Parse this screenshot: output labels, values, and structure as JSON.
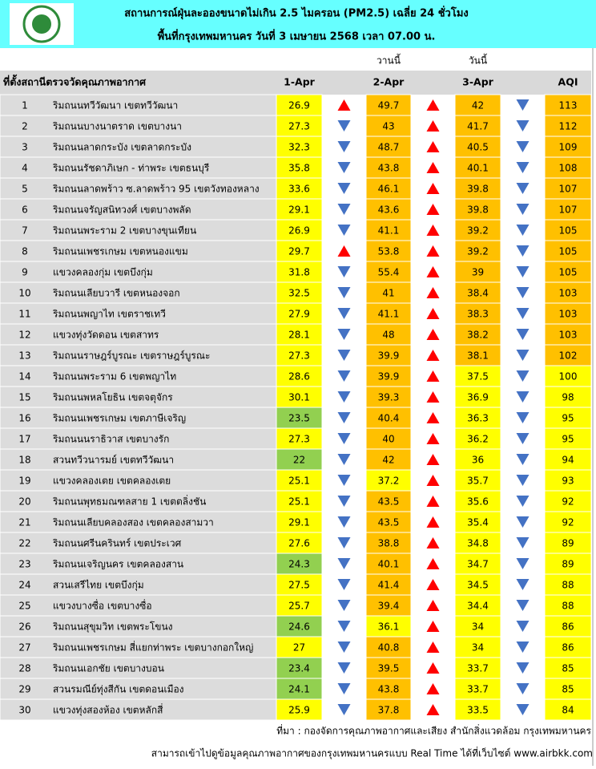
{
  "header": {
    "title": "สถานการณ์ฝุ่นละอองขนาดไม่เกิน 2.5 ไมครอน (PM2.5) เฉลี่ย 24 ชั่วโมง",
    "subtitle": "พื้นที่กรุงเทพมหานคร วันที่ 3 เมษายน 2568 เวลา 07.00 น."
  },
  "table": {
    "day_labels": [
      "วานนี้",
      "วันนี้"
    ],
    "columns": [
      "ที่ตั้งสถานีตรวจวัดคุณภาพอากาศ",
      "1-Apr",
      "2-Apr",
      "3-Apr",
      "AQI"
    ],
    "colors": {
      "good": "#92d050",
      "moderate": "#ffff00",
      "high": "#ffc000",
      "up": "#ff0000",
      "down": "#4472c4"
    },
    "rows": [
      {
        "no": 1,
        "station": "ริมถนนทวีวัฒนา เขตทวีวัฒนา",
        "pm": [
          26.9,
          49.7,
          42
        ],
        "aqi": 113,
        "levels": [
          "moderate",
          "high",
          "high",
          "high"
        ],
        "arrows": [
          "up",
          "up",
          "down"
        ]
      },
      {
        "no": 2,
        "station": "ริมถนนบางนาตราด เขตบางนา",
        "pm": [
          27.3,
          43,
          41.7
        ],
        "aqi": 112,
        "levels": [
          "moderate",
          "high",
          "high",
          "high"
        ],
        "arrows": [
          "down",
          "up",
          "down"
        ]
      },
      {
        "no": 3,
        "station": "ริมถนนลาดกระบัง เขตลาดกระบัง",
        "pm": [
          32.3,
          48.7,
          40.5
        ],
        "aqi": 109,
        "levels": [
          "moderate",
          "high",
          "high",
          "high"
        ],
        "arrows": [
          "down",
          "up",
          "down"
        ]
      },
      {
        "no": 4,
        "station": "ริมถนนรัชดาภิเษก - ท่าพระ เขตธนบุรี",
        "pm": [
          35.8,
          43.8,
          40.1
        ],
        "aqi": 108,
        "levels": [
          "moderate",
          "high",
          "high",
          "high"
        ],
        "arrows": [
          "down",
          "up",
          "down"
        ]
      },
      {
        "no": 5,
        "station": "ริมถนนลาดพร้าว ซ.ลาดพร้าว 95 เขตวังทองหลาง",
        "pm": [
          33.6,
          46.1,
          39.8
        ],
        "aqi": 107,
        "levels": [
          "moderate",
          "high",
          "high",
          "high"
        ],
        "arrows": [
          "down",
          "up",
          "down"
        ]
      },
      {
        "no": 6,
        "station": "ริมถนนจรัญสนิทวงศ์ เขตบางพลัด",
        "pm": [
          29.1,
          43.6,
          39.8
        ],
        "aqi": 107,
        "levels": [
          "moderate",
          "high",
          "high",
          "high"
        ],
        "arrows": [
          "down",
          "up",
          "down"
        ]
      },
      {
        "no": 7,
        "station": "ริมถนนพระราม 2 เขตบางขุนเทียน",
        "pm": [
          26.9,
          41.1,
          39.2
        ],
        "aqi": 105,
        "levels": [
          "moderate",
          "high",
          "high",
          "high"
        ],
        "arrows": [
          "down",
          "up",
          "down"
        ]
      },
      {
        "no": 8,
        "station": "ริมถนนเพชรเกษม เขตหนองแขม",
        "pm": [
          29.7,
          53.8,
          39.2
        ],
        "aqi": 105,
        "levels": [
          "moderate",
          "high",
          "high",
          "high"
        ],
        "arrows": [
          "up",
          "up",
          "down"
        ]
      },
      {
        "no": 9,
        "station": "แขวงคลองกุ่ม เขตบึงกุ่ม",
        "pm": [
          31.8,
          55.4,
          39
        ],
        "aqi": 105,
        "levels": [
          "moderate",
          "high",
          "high",
          "high"
        ],
        "arrows": [
          "down",
          "up",
          "down"
        ]
      },
      {
        "no": 10,
        "station": "ริมถนนเลียบวารี เขตหนองจอก",
        "pm": [
          32.5,
          41,
          38.4
        ],
        "aqi": 103,
        "levels": [
          "moderate",
          "high",
          "high",
          "high"
        ],
        "arrows": [
          "down",
          "up",
          "down"
        ]
      },
      {
        "no": 11,
        "station": "ริมถนนพญาไท เขตราชเทวี",
        "pm": [
          27.9,
          41.1,
          38.3
        ],
        "aqi": 103,
        "levels": [
          "moderate",
          "high",
          "high",
          "high"
        ],
        "arrows": [
          "down",
          "up",
          "down"
        ]
      },
      {
        "no": 12,
        "station": "แขวงทุ่งวัดดอน เขตสาทร",
        "pm": [
          28.1,
          48,
          38.2
        ],
        "aqi": 103,
        "levels": [
          "moderate",
          "high",
          "high",
          "high"
        ],
        "arrows": [
          "down",
          "up",
          "down"
        ]
      },
      {
        "no": 13,
        "station": "ริมถนนราษฎร์บูรณะ เขตราษฎร์บูรณะ",
        "pm": [
          27.3,
          39.9,
          38.1
        ],
        "aqi": 102,
        "levels": [
          "moderate",
          "high",
          "high",
          "high"
        ],
        "arrows": [
          "down",
          "up",
          "down"
        ]
      },
      {
        "no": 14,
        "station": "ริมถนนพระราม 6 เขตพญาไท",
        "pm": [
          28.6,
          39.9,
          37.5
        ],
        "aqi": 100,
        "levels": [
          "moderate",
          "high",
          "moderate",
          "moderate"
        ],
        "arrows": [
          "down",
          "up",
          "down"
        ]
      },
      {
        "no": 15,
        "station": "ริมถนนพหลโยธิน เขตจตุจักร",
        "pm": [
          30.1,
          39.3,
          36.9
        ],
        "aqi": 98,
        "levels": [
          "moderate",
          "high",
          "moderate",
          "moderate"
        ],
        "arrows": [
          "down",
          "up",
          "down"
        ]
      },
      {
        "no": 16,
        "station": "ริมถนนเพชรเกษม เขตภาษีเจริญ",
        "pm": [
          23.5,
          40.4,
          36.3
        ],
        "aqi": 95,
        "levels": [
          "good",
          "high",
          "moderate",
          "moderate"
        ],
        "arrows": [
          "down",
          "up",
          "down"
        ]
      },
      {
        "no": 17,
        "station": "ริมถนนนราธิวาส เขตบางรัก",
        "pm": [
          27.3,
          40,
          36.2
        ],
        "aqi": 95,
        "levels": [
          "moderate",
          "high",
          "moderate",
          "moderate"
        ],
        "arrows": [
          "down",
          "up",
          "down"
        ]
      },
      {
        "no": 18,
        "station": "สวนทวีวนารมย์ เขตทวีวัฒนา",
        "pm": [
          22,
          42,
          36
        ],
        "aqi": 94,
        "levels": [
          "good",
          "high",
          "moderate",
          "moderate"
        ],
        "arrows": [
          "down",
          "up",
          "down"
        ]
      },
      {
        "no": 19,
        "station": "แขวงคลองเตย เขตคลองเตย",
        "pm": [
          25.1,
          37.2,
          35.7
        ],
        "aqi": 93,
        "levels": [
          "moderate",
          "moderate",
          "moderate",
          "moderate"
        ],
        "arrows": [
          "down",
          "up",
          "down"
        ]
      },
      {
        "no": 20,
        "station": "ริมถนนพุทธมณฑลสาย 1 เขตตลิ่งชัน",
        "pm": [
          25.1,
          43.5,
          35.6
        ],
        "aqi": 92,
        "levels": [
          "moderate",
          "high",
          "moderate",
          "moderate"
        ],
        "arrows": [
          "down",
          "up",
          "down"
        ]
      },
      {
        "no": 21,
        "station": "ริมถนนเลียบคลองสอง เขตคลองสามวา",
        "pm": [
          29.1,
          43.5,
          35.4
        ],
        "aqi": 92,
        "levels": [
          "moderate",
          "high",
          "moderate",
          "moderate"
        ],
        "arrows": [
          "down",
          "up",
          "down"
        ]
      },
      {
        "no": 22,
        "station": "ริมถนนศรีนครินทร์ เขตประเวศ",
        "pm": [
          27.6,
          38.8,
          34.8
        ],
        "aqi": 89,
        "levels": [
          "moderate",
          "high",
          "moderate",
          "moderate"
        ],
        "arrows": [
          "down",
          "up",
          "down"
        ]
      },
      {
        "no": 23,
        "station": "ริมถนนเจริญนคร เขตคลองสาน",
        "pm": [
          24.3,
          40.1,
          34.7
        ],
        "aqi": 89,
        "levels": [
          "good",
          "high",
          "moderate",
          "moderate"
        ],
        "arrows": [
          "down",
          "up",
          "down"
        ]
      },
      {
        "no": 24,
        "station": "สวนเสรีไทย  เขตบึงกุ่ม",
        "pm": [
          27.5,
          41.4,
          34.5
        ],
        "aqi": 88,
        "levels": [
          "moderate",
          "high",
          "moderate",
          "moderate"
        ],
        "arrows": [
          "down",
          "up",
          "down"
        ]
      },
      {
        "no": 25,
        "station": "แขวงบางซื่อ เขตบางซื่อ",
        "pm": [
          25.7,
          39.4,
          34.4
        ],
        "aqi": 88,
        "levels": [
          "moderate",
          "high",
          "moderate",
          "moderate"
        ],
        "arrows": [
          "down",
          "up",
          "down"
        ]
      },
      {
        "no": 26,
        "station": "ริมถนนสุขุมวิท เขตพระโขนง",
        "pm": [
          24.6,
          36.1,
          34
        ],
        "aqi": 86,
        "levels": [
          "good",
          "moderate",
          "moderate",
          "moderate"
        ],
        "arrows": [
          "down",
          "up",
          "down"
        ]
      },
      {
        "no": 27,
        "station": "ริมถนนเพชรเกษม สี่แยกท่าพระ เขตบางกอกใหญ่",
        "pm": [
          27,
          40.8,
          34
        ],
        "aqi": 86,
        "levels": [
          "moderate",
          "high",
          "moderate",
          "moderate"
        ],
        "arrows": [
          "down",
          "up",
          "down"
        ]
      },
      {
        "no": 28,
        "station": "ริมถนนเอกชัย เขตบางบอน",
        "pm": [
          23.4,
          39.5,
          33.7
        ],
        "aqi": 85,
        "levels": [
          "good",
          "high",
          "moderate",
          "moderate"
        ],
        "arrows": [
          "down",
          "up",
          "down"
        ]
      },
      {
        "no": 29,
        "station": "สวนรมณีย์ทุ่งสีกัน เขตดอนเมือง",
        "pm": [
          24.1,
          43.8,
          33.7
        ],
        "aqi": 85,
        "levels": [
          "good",
          "high",
          "moderate",
          "moderate"
        ],
        "arrows": [
          "down",
          "up",
          "down"
        ]
      },
      {
        "no": 30,
        "station": "แขวงทุ่งสองห้อง เขตหลักสี่",
        "pm": [
          25.9,
          37.8,
          33.5
        ],
        "aqi": 84,
        "levels": [
          "moderate",
          "high",
          "moderate",
          "moderate"
        ],
        "arrows": [
          "down",
          "up",
          "down"
        ]
      }
    ]
  },
  "footer": {
    "source": "ที่มา : กองจัดการคุณภาพอากาศและเสียง สำนักสิ่งแวดล้อม กรุงเทพมหานคร",
    "note": "สามารถเข้าไปดูข้อมูลคุณภาพอากาศของกรุงเทพมหานครแบบ Real Time ได้ที่เว็บไซต์ www.airbkk.com"
  }
}
